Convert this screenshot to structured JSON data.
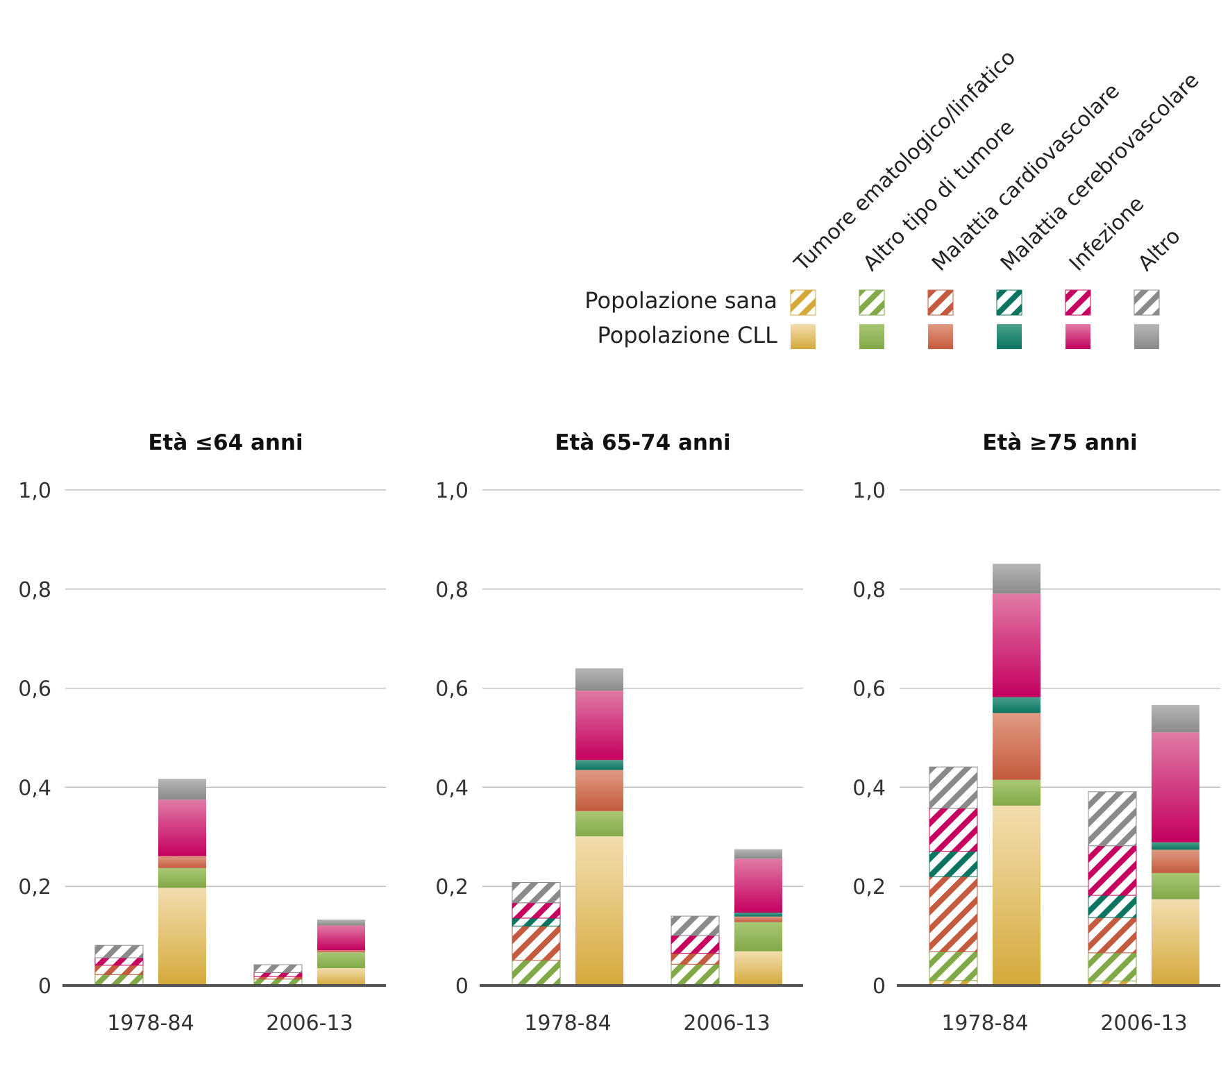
{
  "legend": {
    "row_sana": "Popolazione sana",
    "row_cll": "Popolazione CLL",
    "categories": [
      {
        "key": "ematologico",
        "label": "Tumore ematologico/linfatico",
        "color": "#d4a93a",
        "light": "#f3ddaf"
      },
      {
        "key": "altro_tumore",
        "label": "Altro tipo di tumore",
        "color": "#82a947",
        "light": "#a8c774"
      },
      {
        "key": "cardio",
        "label": "Malattia cardiovascolare",
        "color": "#c45a3e",
        "light": "#e09a82"
      },
      {
        "key": "cerebro",
        "label": "Malattia cerebrovascolare",
        "color": "#0b7461",
        "light": "#4aa08c"
      },
      {
        "key": "infezione",
        "label": "Infezione",
        "color": "#c5005f",
        "light": "#e07aa5"
      },
      {
        "key": "altro",
        "label": "Altro",
        "color": "#8a8a8a",
        "light": "#b6b6b6"
      }
    ]
  },
  "chart_data": [
    {
      "type": "bar",
      "stacked": true,
      "title": "Età ≤64 anni",
      "ylim": [
        0,
        1.0
      ],
      "yticks": [
        "0",
        "0,2",
        "0,4",
        "0,6",
        "0,8",
        "1,0"
      ],
      "categories": [
        "1978-84",
        "2006-13"
      ],
      "series_order": [
        "ematologico",
        "altro_tumore",
        "cardio",
        "cerebro",
        "infezione",
        "altro"
      ],
      "groups": [
        {
          "category": "1978-84",
          "sana": {
            "ematologico": 0.0,
            "altro_tumore": 0.022,
            "cardio": 0.019,
            "cerebro": 0.0,
            "infezione": 0.015,
            "altro": 0.025
          },
          "cll": {
            "ematologico": 0.197,
            "altro_tumore": 0.04,
            "cardio": 0.024,
            "cerebro": 0.0,
            "infezione": 0.114,
            "altro": 0.042
          }
        },
        {
          "category": "2006-13",
          "sana": {
            "ematologico": 0.0,
            "altro_tumore": 0.013,
            "cardio": 0.005,
            "cerebro": 0.0,
            "infezione": 0.008,
            "altro": 0.016
          },
          "cll": {
            "ematologico": 0.035,
            "altro_tumore": 0.032,
            "cardio": 0.004,
            "cerebro": 0.0,
            "infezione": 0.05,
            "altro": 0.012
          }
        }
      ]
    },
    {
      "type": "bar",
      "stacked": true,
      "title": "Età 65-74 anni",
      "ylim": [
        0,
        1.0
      ],
      "yticks": [
        "0",
        "0,2",
        "0,4",
        "0,6",
        "0,8",
        "1,0"
      ],
      "categories": [
        "1978-84",
        "2006-13"
      ],
      "series_order": [
        "ematologico",
        "altro_tumore",
        "cardio",
        "cerebro",
        "infezione",
        "altro"
      ],
      "groups": [
        {
          "category": "1978-84",
          "sana": {
            "ematologico": 0.0,
            "altro_tumore": 0.051,
            "cardio": 0.069,
            "cerebro": 0.016,
            "infezione": 0.031,
            "altro": 0.041
          },
          "cll": {
            "ematologico": 0.301,
            "altro_tumore": 0.051,
            "cardio": 0.083,
            "cerebro": 0.02,
            "infezione": 0.14,
            "altro": 0.045
          }
        },
        {
          "category": "2006-13",
          "sana": {
            "ematologico": 0.0,
            "altro_tumore": 0.043,
            "cardio": 0.022,
            "cerebro": 0.0,
            "infezione": 0.036,
            "altro": 0.039
          },
          "cll": {
            "ematologico": 0.069,
            "altro_tumore": 0.059,
            "cardio": 0.011,
            "cerebro": 0.008,
            "infezione": 0.109,
            "altro": 0.019
          }
        }
      ]
    },
    {
      "type": "bar",
      "stacked": true,
      "title": "Età ≥75 anni",
      "ylim": [
        0,
        1.0
      ],
      "yticks": [
        "0",
        "0,2",
        "0,4",
        "0,6",
        "0,8",
        "1,0"
      ],
      "categories": [
        "1978-84",
        "2006-13"
      ],
      "series_order": [
        "ematologico",
        "altro_tumore",
        "cardio",
        "cerebro",
        "infezione",
        "altro"
      ],
      "groups": [
        {
          "category": "1978-84",
          "sana": {
            "ematologico": 0.01,
            "altro_tumore": 0.058,
            "cardio": 0.152,
            "cerebro": 0.051,
            "infezione": 0.087,
            "altro": 0.083
          },
          "cll": {
            "ematologico": 0.363,
            "altro_tumore": 0.052,
            "cardio": 0.135,
            "cerebro": 0.032,
            "infezione": 0.209,
            "altro": 0.06
          }
        },
        {
          "category": "2006-13",
          "sana": {
            "ematologico": 0.009,
            "altro_tumore": 0.057,
            "cardio": 0.071,
            "cerebro": 0.045,
            "infezione": 0.1,
            "altro": 0.109
          },
          "cll": {
            "ematologico": 0.174,
            "altro_tumore": 0.053,
            "cardio": 0.047,
            "cerebro": 0.015,
            "infezione": 0.222,
            "altro": 0.055
          }
        }
      ]
    }
  ]
}
